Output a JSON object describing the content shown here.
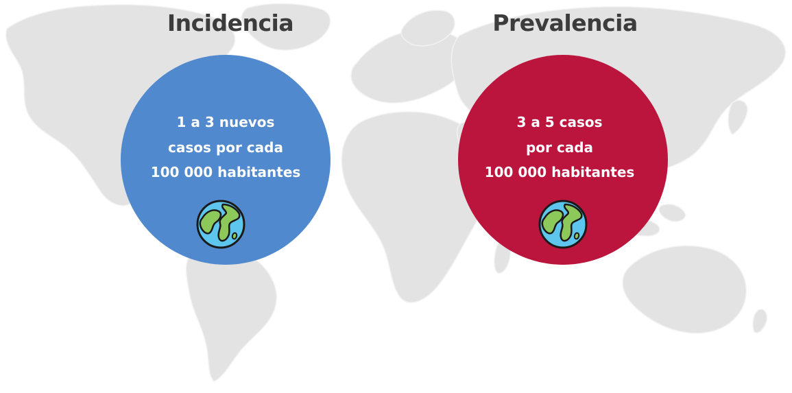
{
  "panels": [
    {
      "title": "Incidencia",
      "lines": [
        "1 a 3 nuevos",
        "casos por cada",
        "100 000 habitantes"
      ],
      "circle_color": "#5089cd",
      "icon": "globe-icon"
    },
    {
      "title": "Prevalencia",
      "lines": [
        "3 a 5 casos",
        "por cada",
        "100 000 habitantes"
      ],
      "circle_color": "#bb143d",
      "icon": "globe-icon"
    }
  ],
  "colors": {
    "background": "#ffffff",
    "map": "#e3e3e3",
    "title_text": "#3c3c3c",
    "circle_text": "#ffffff",
    "globe_ocean": "#5ec6ec",
    "globe_land": "#8cc85a",
    "globe_outline": "#1a1a1a"
  }
}
